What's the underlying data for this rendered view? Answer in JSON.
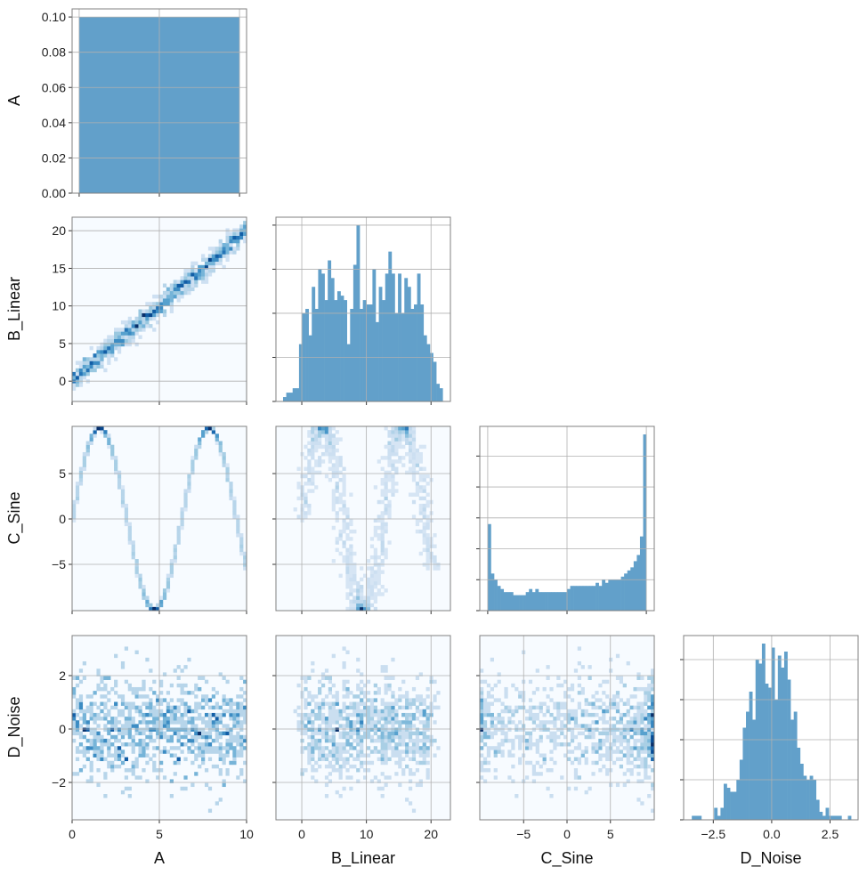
{
  "chart_data": {
    "type": "pairplot",
    "variables": [
      "A",
      "B_Linear",
      "C_Sine",
      "D_Noise"
    ],
    "diagonal_type": "histogram",
    "offdiagonal_type": "hist2d",
    "colormap": "Blues",
    "bar_color": "#62a0ca",
    "grid": true,
    "x_axes": [
      {
        "variable": "A",
        "lim": [
          0,
          10
        ],
        "ticks": [
          0,
          5,
          10
        ],
        "tick_labels": [
          "0",
          "5",
          "10"
        ]
      },
      {
        "variable": "B_Linear",
        "lim": [
          -4,
          23
        ],
        "ticks": [
          0,
          10,
          20
        ],
        "tick_labels": [
          "0",
          "10",
          "20"
        ]
      },
      {
        "variable": "C_Sine",
        "lim": [
          -10.05,
          10.05
        ],
        "ticks": [
          -5,
          0,
          5
        ],
        "tick_labels": [
          "−5",
          "0",
          "5"
        ]
      },
      {
        "variable": "D_Noise",
        "lim": [
          -3.77,
          3.7
        ],
        "ticks": [
          -2.5,
          0,
          2.5
        ],
        "tick_labels": [
          "−2.5",
          "0.0",
          "2.5"
        ]
      }
    ],
    "y_axes": [
      {
        "variable": "A",
        "lim": [
          0,
          0.1046
        ],
        "ticks": [
          0,
          0.02,
          0.04,
          0.06,
          0.08,
          0.1
        ],
        "tick_labels": [
          "0.00",
          "0.02",
          "0.04",
          "0.06",
          "0.08",
          "0.10"
        ]
      },
      {
        "variable": "B_Linear",
        "lim": [
          -2.7,
          21.8
        ],
        "ticks": [
          0,
          5,
          10,
          15,
          20
        ],
        "tick_labels": [
          "0",
          "5",
          "10",
          "15",
          "20"
        ]
      },
      {
        "variable": "C_Sine",
        "lim": [
          -10.1,
          10.2
        ],
        "ticks": [
          -5,
          0,
          5
        ],
        "tick_labels": [
          "−5",
          "0",
          "5"
        ]
      },
      {
        "variable": "D_Noise",
        "lim": [
          -3.4,
          3.5
        ],
        "ticks": [
          -2,
          0,
          2
        ],
        "tick_labels": [
          "−2",
          "0",
          "2"
        ]
      }
    ],
    "diagonal": [
      {
        "variable": "A",
        "range": [
          0,
          10
        ],
        "counts": [
          0.1
        ],
        "xlim": [
          -0.44,
          10.44
        ],
        "ylim": [
          0,
          0.1046
        ],
        "xticks": [
          0,
          5,
          10
        ],
        "yticks": [
          0,
          0.02,
          0.04,
          0.06,
          0.08,
          0.1
        ]
      },
      {
        "variable": "B_Linear",
        "range": [
          -2.9,
          21.8
        ],
        "counts": [
          1,
          2,
          2,
          3,
          3,
          13,
          20,
          21,
          15,
          26,
          21,
          30,
          29,
          23,
          32,
          28,
          23,
          25,
          24,
          23,
          13,
          21,
          31,
          40,
          21,
          23,
          22,
          22,
          30,
          18,
          26,
          23,
          29,
          34,
          29,
          20,
          29,
          20,
          28,
          26,
          21,
          22,
          29,
          22,
          15,
          13,
          11,
          9,
          4,
          3
        ],
        "xlim": [
          -4,
          23
        ],
        "ylim": [
          0,
          41.8
        ],
        "xticks": [
          0,
          10,
          20
        ],
        "yticks": [
          0,
          10,
          20,
          30,
          40
        ]
      },
      {
        "variable": "C_Sine",
        "range": [
          -10,
          10
        ],
        "counts": [
          28,
          12,
          10,
          8,
          7,
          6,
          6,
          6,
          5,
          5,
          5,
          5,
          6,
          7,
          6,
          7,
          6,
          6,
          6,
          6,
          6,
          6,
          6,
          6,
          6,
          7,
          8,
          8,
          8,
          8,
          8,
          8,
          8,
          8,
          9,
          8,
          10,
          9,
          10,
          10,
          10,
          10,
          11,
          12,
          13,
          14,
          16,
          18,
          24,
          57
        ],
        "xlim": [
          -11,
          11
        ],
        "ylim": [
          0,
          59.6
        ],
        "xticks": [
          -10,
          0,
          10
        ],
        "yticks": [
          0,
          10,
          20,
          30,
          40,
          50
        ]
      },
      {
        "variable": "D_Noise",
        "range": [
          -3.42,
          3.4
        ],
        "counts": [
          1,
          1,
          1,
          0,
          0,
          0,
          0,
          3,
          1,
          3,
          9,
          8,
          7,
          7,
          10,
          15,
          23,
          27,
          32,
          25,
          40,
          39,
          44,
          34,
          33,
          43,
          30,
          41,
          38,
          42,
          35,
          25,
          27,
          18,
          14,
          11,
          10,
          11,
          10,
          5,
          2,
          1,
          3,
          1,
          1,
          1,
          1,
          0,
          0,
          1
        ],
        "xlim": [
          -3.77,
          3.7
        ],
        "ylim": [
          0,
          46
        ],
        "xticks": [
          -2.5,
          0,
          2.5
        ],
        "yticks": [
          0,
          10,
          20,
          30,
          40
        ]
      }
    ]
  }
}
